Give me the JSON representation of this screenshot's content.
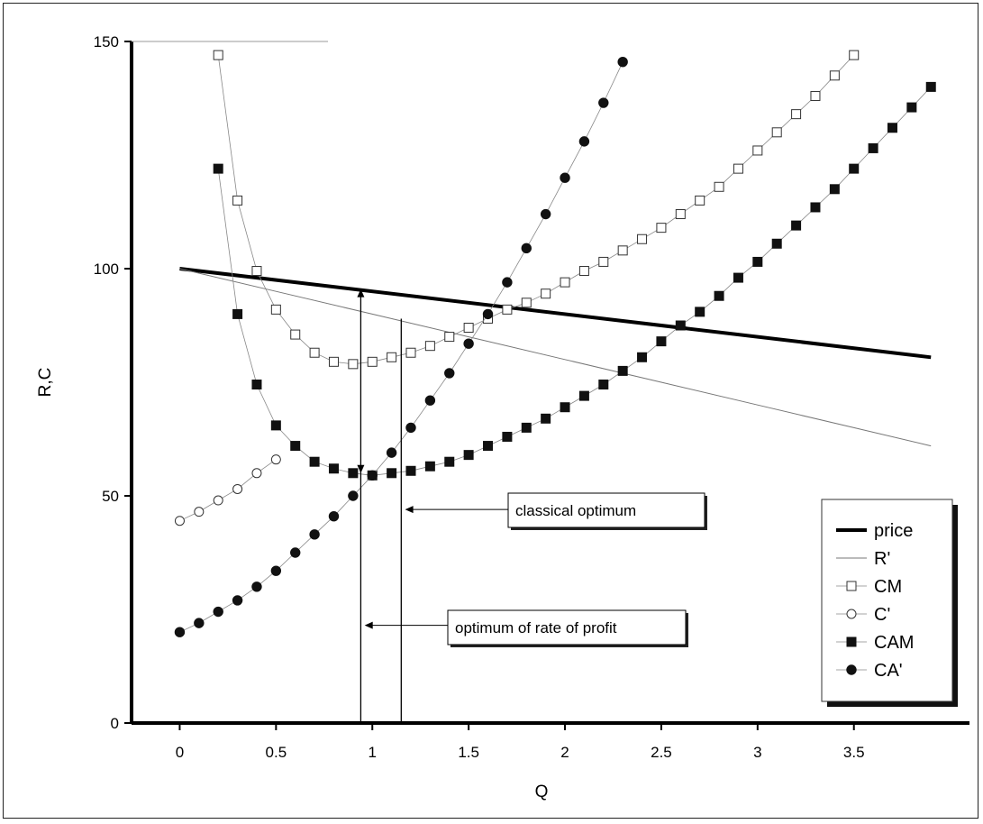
{
  "chart_data": {
    "type": "line",
    "title": "",
    "xlabel": "Q",
    "ylabel": "R,C",
    "xlim": [
      -0.25,
      4.1
    ],
    "ylim": [
      0,
      150
    ],
    "x_ticks": [
      "0",
      "0.5",
      "1",
      "1.5",
      "2",
      "2.5",
      "3",
      "3.5"
    ],
    "x_tick_values": [
      0,
      0.5,
      1,
      1.5,
      2,
      2.5,
      3,
      3.5
    ],
    "y_ticks": [
      "0",
      "50",
      "100",
      "150"
    ],
    "y_tick_values": [
      0,
      50,
      100,
      150
    ],
    "grid": false,
    "legend_position": "bottom-right",
    "series": [
      {
        "name": "price",
        "style": "thick-line",
        "x": [
          0,
          3.9
        ],
        "y": [
          100,
          80.5
        ]
      },
      {
        "name": "R'",
        "style": "thin-line",
        "x": [
          0,
          0.5,
          1,
          1.5,
          2,
          2.5,
          3,
          3.5,
          3.9
        ],
        "y": [
          100,
          95,
          90,
          85,
          80,
          75,
          70,
          65,
          61
        ]
      },
      {
        "name": "CM",
        "style": "open-square",
        "x": [
          0.2,
          0.3,
          0.4,
          0.5,
          0.6,
          0.7,
          0.8,
          0.9,
          1.0,
          1.1,
          1.2,
          1.3,
          1.4,
          1.5,
          1.6,
          1.7,
          1.8,
          1.9,
          2.0,
          2.1,
          2.2,
          2.3,
          2.4,
          2.5,
          2.6,
          2.7,
          2.8,
          2.9,
          3.0,
          3.1,
          3.2,
          3.3,
          3.4,
          3.5
        ],
        "y": [
          147,
          115,
          99.5,
          91,
          85.5,
          81.5,
          79.5,
          79,
          79.5,
          80.5,
          81.5,
          83,
          85,
          87,
          89,
          91,
          92.5,
          94.5,
          97,
          99.5,
          101.5,
          104,
          106.5,
          109,
          112,
          115,
          118,
          122,
          126,
          130,
          134,
          138,
          142.5,
          147
        ]
      },
      {
        "name": "C'",
        "style": "open-circle",
        "x": [
          0,
          0.1,
          0.2,
          0.3,
          0.4,
          0.5
        ],
        "y": [
          44.5,
          46.5,
          49,
          51.5,
          55,
          58
        ]
      },
      {
        "name": "CAM",
        "style": "filled-square",
        "x": [
          0.2,
          0.3,
          0.4,
          0.5,
          0.6,
          0.7,
          0.8,
          0.9,
          1.0,
          1.1,
          1.2,
          1.3,
          1.4,
          1.5,
          1.6,
          1.7,
          1.8,
          1.9,
          2.0,
          2.1,
          2.2,
          2.3,
          2.4,
          2.5,
          2.6,
          2.7,
          2.8,
          2.9,
          3.0,
          3.1,
          3.2,
          3.3,
          3.4,
          3.5,
          3.6,
          3.7,
          3.8,
          3.9
        ],
        "y": [
          122,
          90,
          74.5,
          65.5,
          61,
          57.5,
          56,
          55,
          54.5,
          55,
          55.5,
          56.5,
          57.5,
          59,
          61,
          63,
          65,
          67,
          69.5,
          72,
          74.5,
          77.5,
          80.5,
          84,
          87.5,
          90.5,
          94,
          98,
          101.5,
          105.5,
          109.5,
          113.5,
          117.5,
          122,
          126.5,
          131,
          135.5,
          140
        ]
      },
      {
        "name": "CA'",
        "style": "filled-circle",
        "x": [
          0,
          0.1,
          0.2,
          0.3,
          0.4,
          0.5,
          0.6,
          0.7,
          0.8,
          0.9,
          1.0,
          1.1,
          1.2,
          1.3,
          1.4,
          1.5,
          1.6,
          1.7,
          1.8,
          1.9,
          2.0,
          2.1,
          2.2,
          2.3
        ],
        "y": [
          20,
          22,
          24.5,
          27,
          30,
          33.5,
          37.5,
          41.5,
          45.5,
          50,
          54.5,
          59.5,
          65,
          71,
          77,
          83.5,
          90,
          97,
          104.5,
          112,
          120,
          128,
          136.5,
          145.5
        ]
      }
    ],
    "vertical_markers": [
      {
        "x": 0.94,
        "y_top": 95.5,
        "arrows": "both",
        "to_y": 55
      },
      {
        "x": 1.15,
        "y_top": 89
      }
    ],
    "annotations": [
      {
        "label": "classical optimum",
        "target_x": 1.17,
        "target_y": 47
      },
      {
        "label": "optimum of rate of profit",
        "target_x": 0.96,
        "target_y": 21.5
      }
    ]
  }
}
